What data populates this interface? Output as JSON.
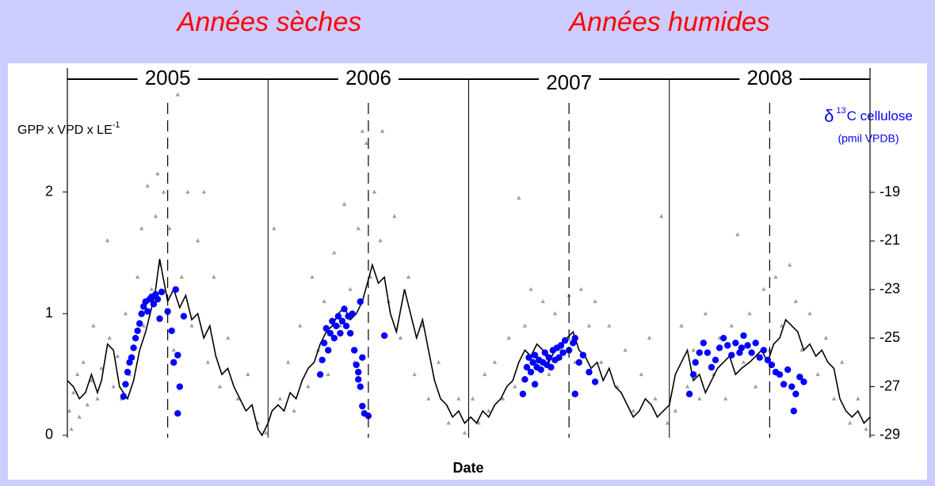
{
  "banner": [
    "Années sèches",
    "Années humides"
  ],
  "chart_data": {
    "type": "combo",
    "xlabel": "Date",
    "ylabel": {
      "text": "GPP x VPD x LE",
      "sup": "-1"
    },
    "y2label": {
      "pre": "δ",
      "sup": "13",
      "text": "C cellulose",
      "sub": "(pmil VPDB)"
    },
    "xlim": [
      2005,
      2009
    ],
    "ylim": [
      -0.02,
      2.98
    ],
    "yticks": [
      0,
      1,
      2
    ],
    "y2lim": [
      -29.1,
      -14.08
    ],
    "y2ticks": [
      -29,
      -27,
      -25,
      -23,
      -21,
      -19
    ],
    "year_spans": [
      {
        "label": "2005",
        "from": 2005,
        "to": 2006
      },
      {
        "label": "2006",
        "from": 2006,
        "to": 2007
      },
      {
        "label": "2007",
        "from": 2007,
        "to": 2008
      },
      {
        "label": "2008",
        "from": 2008,
        "to": 2009
      }
    ],
    "mid_lines": [
      2005.5,
      2006.5,
      2007.5,
      2008.5
    ],
    "series": [
      {
        "type": "scatter",
        "marker": "triangle",
        "color": "#a0a0a0",
        "x": [
          2005.01,
          2005.02,
          2005.03,
          2005.05,
          2005.06,
          2005.08,
          2005.1,
          2005.12,
          2005.13,
          2005.15,
          2005.17,
          2005.2,
          2005.21,
          2005.23,
          2005.25,
          2005.27,
          2005.29,
          2005.31,
          2005.33,
          2005.35,
          2005.37,
          2005.38,
          2005.4,
          2005.42,
          2005.44,
          2005.45,
          2005.46,
          2005.48,
          2005.5,
          2005.51,
          2005.53,
          2005.55,
          2005.57,
          2005.6,
          2005.62,
          2005.65,
          2005.68,
          2005.7,
          2005.73,
          2005.76,
          2005.8,
          2005.85,
          2005.9,
          2005.95,
          2005.99,
          2006.03,
          2006.06,
          2006.1,
          2006.13,
          2006.16,
          2006.2,
          2006.22,
          2006.25,
          2006.28,
          2006.3,
          2006.33,
          2006.36,
          2006.38,
          2006.41,
          2006.43,
          2006.45,
          2006.47,
          2006.49,
          2006.51,
          2006.53,
          2006.56,
          2006.57,
          2006.6,
          2006.63,
          2006.66,
          2006.7,
          2006.73,
          2006.77,
          2006.8,
          2006.85,
          2006.9,
          2006.95,
          2006.98,
          2007.02,
          2007.05,
          2007.08,
          2007.1,
          2007.13,
          2007.17,
          2007.2,
          2007.23,
          2007.25,
          2007.28,
          2007.31,
          2007.34,
          2007.37,
          2007.4,
          2007.43,
          2007.46,
          2007.5,
          2007.53,
          2007.56,
          2007.6,
          2007.63,
          2007.66,
          2007.7,
          2007.74,
          2007.78,
          2007.82,
          2007.86,
          2007.9,
          2007.93,
          2007.96,
          2007.99,
          2008.03,
          2008.06,
          2008.09,
          2008.12,
          2008.15,
          2008.18,
          2008.22,
          2008.25,
          2008.28,
          2008.31,
          2008.34,
          2008.37,
          2008.4,
          2008.43,
          2008.47,
          2008.5,
          2008.53,
          2008.56,
          2008.6,
          2008.63,
          2008.66,
          2008.7,
          2008.74,
          2008.78,
          2008.82,
          2008.86,
          2008.9,
          2008.94,
          2008.98
        ],
        "values": [
          0.2,
          0.05,
          0.35,
          0.5,
          0.15,
          0.6,
          0.25,
          0.45,
          0.9,
          0.3,
          0.55,
          1.6,
          0.8,
          0.4,
          0.65,
          0.3,
          1.0,
          0.5,
          0.8,
          1.3,
          1.7,
          0.9,
          2.05,
          1.2,
          1.8,
          2.15,
          1.4,
          2.0,
          1.0,
          1.7,
          0.7,
          2.8,
          1.3,
          2.0,
          0.9,
          1.6,
          2.0,
          0.6,
          1.3,
          0.4,
          0.8,
          0.3,
          0.5,
          0.1,
          0.02,
          1.7,
          0.3,
          0.6,
          0.2,
          0.9,
          0.4,
          1.3,
          0.7,
          1.1,
          0.5,
          1.5,
          0.9,
          1.9,
          1.2,
          0.6,
          1.7,
          2.5,
          2.4,
          1.3,
          2.0,
          1.6,
          2.5,
          1.1,
          1.8,
          0.8,
          1.3,
          0.5,
          0.9,
          0.3,
          0.6,
          0.1,
          0.3,
          0.02,
          0.3,
          0.1,
          0.5,
          0.2,
          0.6,
          0.3,
          0.8,
          0.4,
          1.95,
          0.9,
          1.2,
          0.6,
          1.1,
          0.5,
          1.0,
          0.7,
          1.15,
          0.6,
          1.2,
          0.9,
          1.1,
          0.6,
          0.9,
          0.4,
          0.7,
          0.2,
          0.5,
          0.8,
          0.3,
          1.8,
          0.1,
          0.2,
          0.9,
          0.4,
          0.7,
          0.3,
          1.0,
          0.5,
          0.8,
          0.3,
          0.9,
          1.65,
          0.6,
          1.0,
          0.4,
          1.2,
          0.7,
          1.3,
          0.9,
          1.4,
          1.1,
          0.7,
          1.0,
          0.5,
          0.8,
          0.3,
          0.6,
          0.1,
          0.3,
          0.05
        ]
      },
      {
        "type": "line",
        "color": "#000000",
        "x": [
          2005.0,
          2005.03,
          2005.06,
          2005.09,
          2005.12,
          2005.15,
          2005.17,
          2005.2,
          2005.23,
          2005.26,
          2005.3,
          2005.33,
          2005.36,
          2005.39,
          2005.42,
          2005.44,
          2005.46,
          2005.5,
          2005.53,
          2005.56,
          2005.59,
          2005.62,
          2005.65,
          2005.68,
          2005.71,
          2005.74,
          2005.77,
          2005.8,
          2005.83,
          2005.86,
          2005.89,
          2005.92,
          2005.95,
          2005.97,
          2006.0,
          2006.02,
          2006.05,
          2006.08,
          2006.11,
          2006.14,
          2006.17,
          2006.2,
          2006.23,
          2006.26,
          2006.29,
          2006.32,
          2006.35,
          2006.38,
          2006.41,
          2006.44,
          2006.47,
          2006.52,
          2006.55,
          2006.58,
          2006.61,
          2006.64,
          2006.68,
          2006.71,
          2006.74,
          2006.77,
          2006.8,
          2006.83,
          2006.86,
          2006.89,
          2006.92,
          2006.95,
          2006.98,
          2007.01,
          2007.04,
          2007.07,
          2007.1,
          2007.13,
          2007.16,
          2007.19,
          2007.22,
          2007.25,
          2007.28,
          2007.31,
          2007.34,
          2007.37,
          2007.4,
          2007.43,
          2007.46,
          2007.49,
          2007.52,
          2007.55,
          2007.58,
          2007.61,
          2007.64,
          2007.67,
          2007.7,
          2007.73,
          2007.76,
          2007.79,
          2007.82,
          2007.85,
          2007.88,
          2007.91,
          2007.94,
          2007.97,
          2008.0,
          2008.03,
          2008.06,
          2008.09,
          2008.12,
          2008.15,
          2008.18,
          2008.21,
          2008.24,
          2008.27,
          2008.3,
          2008.33,
          2008.36,
          2008.4,
          2008.43,
          2008.46,
          2008.49,
          2008.52,
          2008.55,
          2008.58,
          2008.61,
          2008.64,
          2008.67,
          2008.7,
          2008.73,
          2008.76,
          2008.79,
          2008.82,
          2008.85,
          2008.88,
          2008.91,
          2008.94,
          2008.97,
          2009.0
        ],
        "values": [
          0.45,
          0.4,
          0.3,
          0.35,
          0.5,
          0.35,
          0.45,
          0.75,
          0.7,
          0.4,
          0.3,
          0.45,
          0.7,
          0.85,
          1.05,
          1.2,
          1.45,
          1.1,
          1.2,
          1.05,
          1.15,
          0.95,
          1.0,
          0.8,
          0.9,
          0.65,
          0.5,
          0.55,
          0.4,
          0.3,
          0.2,
          0.25,
          0.05,
          0.0,
          0.1,
          0.2,
          0.25,
          0.2,
          0.35,
          0.3,
          0.45,
          0.55,
          0.6,
          0.75,
          0.85,
          0.9,
          1.0,
          1.05,
          0.95,
          1.0,
          1.1,
          1.4,
          1.25,
          1.3,
          1.0,
          0.85,
          1.2,
          1.0,
          0.8,
          0.95,
          0.7,
          0.45,
          0.3,
          0.25,
          0.15,
          0.2,
          0.1,
          0.15,
          0.1,
          0.2,
          0.15,
          0.25,
          0.3,
          0.4,
          0.45,
          0.6,
          0.7,
          0.65,
          0.75,
          0.7,
          0.6,
          0.7,
          0.75,
          0.8,
          0.85,
          0.7,
          0.65,
          0.55,
          0.6,
          0.45,
          0.55,
          0.4,
          0.35,
          0.25,
          0.15,
          0.2,
          0.3,
          0.25,
          0.15,
          0.2,
          0.25,
          0.5,
          0.6,
          0.7,
          0.45,
          0.5,
          0.35,
          0.45,
          0.55,
          0.6,
          0.65,
          0.5,
          0.55,
          0.6,
          0.65,
          0.7,
          0.6,
          0.75,
          0.8,
          0.95,
          0.9,
          0.85,
          0.7,
          0.75,
          0.65,
          0.7,
          0.6,
          0.55,
          0.3,
          0.2,
          0.15,
          0.2,
          0.1,
          0.15
        ]
      },
      {
        "type": "scatter",
        "marker": "circle",
        "color": "#0000ff",
        "axis": "y2",
        "x": [
          2005.28,
          2005.29,
          2005.3,
          2005.31,
          2005.32,
          2005.33,
          2005.34,
          2005.35,
          2005.36,
          2005.37,
          2005.38,
          2005.39,
          2005.4,
          2005.41,
          2005.42,
          2005.43,
          2005.44,
          2005.45,
          2005.46,
          2005.47,
          2005.5,
          2005.52,
          2005.53,
          2005.55,
          2005.56,
          2005.55,
          2005.58,
          2005.54,
          2006.26,
          2006.27,
          2006.28,
          2006.29,
          2006.3,
          2006.31,
          2006.32,
          2006.33,
          2006.34,
          2006.35,
          2006.36,
          2006.37,
          2006.38,
          2006.39,
          2006.4,
          2006.41,
          2006.42,
          2006.43,
          2006.44,
          2006.45,
          2006.46,
          2006.47,
          2006.48,
          2006.46,
          2006.5,
          2006.47,
          2006.58,
          2006.45,
          2007.27,
          2007.28,
          2007.29,
          2007.3,
          2007.31,
          2007.32,
          2007.33,
          2007.34,
          2007.35,
          2007.36,
          2007.37,
          2007.38,
          2007.39,
          2007.4,
          2007.41,
          2007.42,
          2007.43,
          2007.44,
          2007.45,
          2007.46,
          2007.47,
          2007.48,
          2007.5,
          2007.52,
          2007.53,
          2007.55,
          2007.57,
          2007.6,
          2007.63,
          2007.53,
          2007.33,
          2008.1,
          2008.12,
          2008.13,
          2008.15,
          2008.17,
          2008.19,
          2008.21,
          2008.23,
          2008.25,
          2008.27,
          2008.29,
          2008.31,
          2008.33,
          2008.35,
          2008.37,
          2008.39,
          2008.41,
          2008.43,
          2008.45,
          2008.47,
          2008.49,
          2008.51,
          2008.53,
          2008.55,
          2008.57,
          2008.59,
          2008.61,
          2008.63,
          2008.65,
          2008.67,
          2008.62,
          2008.36
        ],
        "values": [
          -27.4,
          -26.9,
          -26.4,
          -26.0,
          -25.8,
          -25.4,
          -25.0,
          -24.7,
          -24.4,
          -24.0,
          -23.7,
          -23.5,
          -23.9,
          -23.4,
          -23.3,
          -23.6,
          -23.2,
          -23.4,
          -24.2,
          -23.1,
          -23.9,
          -24.7,
          -26.0,
          -25.7,
          -27.0,
          -28.1,
          -24.1,
          -23.0,
          -26.5,
          -25.9,
          -25.2,
          -24.6,
          -25.5,
          -24.8,
          -24.3,
          -25.0,
          -24.5,
          -24.1,
          -24.8,
          -24.3,
          -23.8,
          -24.5,
          -24.1,
          -24.8,
          -24.0,
          -25.5,
          -26.1,
          -26.7,
          -27.0,
          -27.8,
          -28.1,
          -23.5,
          -28.2,
          -25.8,
          -24.9,
          -26.4,
          -27.3,
          -26.7,
          -26.2,
          -25.8,
          -26.4,
          -26.0,
          -25.7,
          -26.2,
          -25.9,
          -26.3,
          -26.0,
          -25.6,
          -26.1,
          -25.8,
          -26.2,
          -25.5,
          -25.9,
          -25.4,
          -25.8,
          -25.3,
          -25.6,
          -25.1,
          -25.5,
          -25.2,
          -25.0,
          -26.0,
          -25.7,
          -26.4,
          -26.8,
          -27.3,
          -26.9,
          -27.3,
          -26.5,
          -26.0,
          -25.6,
          -25.2,
          -25.6,
          -26.2,
          -25.9,
          -25.4,
          -25.0,
          -25.3,
          -25.7,
          -25.2,
          -25.6,
          -24.9,
          -25.3,
          -25.6,
          -25.2,
          -25.8,
          -25.5,
          -25.9,
          -26.1,
          -26.4,
          -26.5,
          -26.9,
          -26.3,
          -27.0,
          -27.3,
          -26.6,
          -26.8,
          -28.0,
          -25.4
        ]
      }
    ]
  }
}
